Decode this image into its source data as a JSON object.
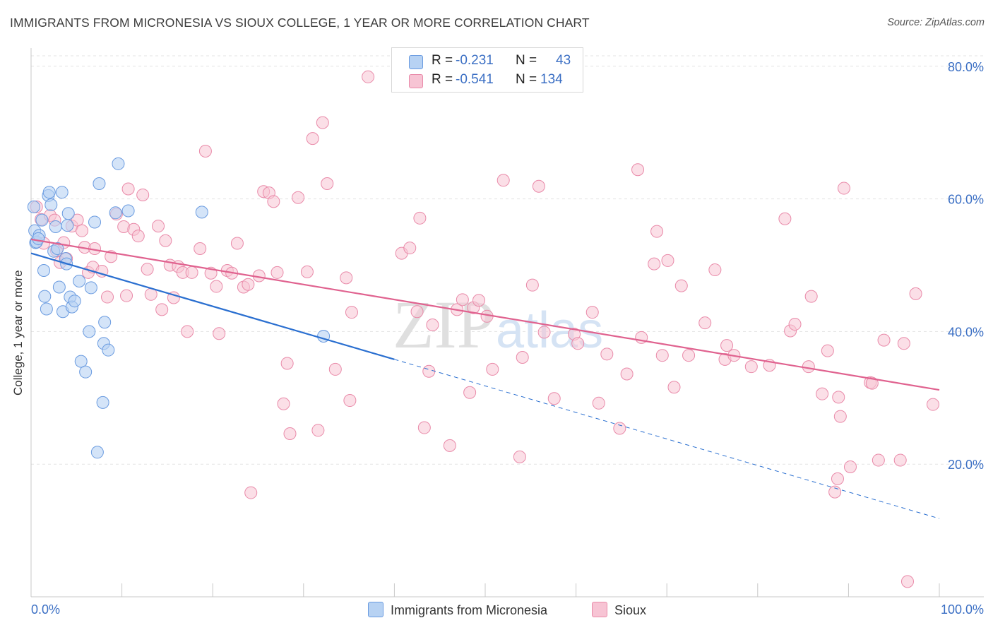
{
  "title": "IMMIGRANTS FROM MICRONESIA VS SIOUX COLLEGE, 1 YEAR OR MORE CORRELATION CHART",
  "source": "Source: ZipAtlas.com",
  "watermark": {
    "zip": "ZIP",
    "atlas": "atlas"
  },
  "colors": {
    "micronesia_fill": "#b7d2f3",
    "micronesia_stroke": "#6a9be0",
    "micronesia_line": "#2a6fd0",
    "sioux_fill": "#f7c4d4",
    "sioux_stroke": "#e98aa9",
    "sioux_line": "#e0628f",
    "value_blue": "#3b6fc4",
    "grid": "#e3e3e3"
  },
  "stats": {
    "micronesia": {
      "r_label": "R =",
      "r": "-0.231",
      "n_label": "N =",
      "n": "43"
    },
    "sioux": {
      "r_label": "R =",
      "r": "-0.541",
      "n_label": "N =",
      "n": "134"
    }
  },
  "legend": {
    "micronesia": "Immigrants from Micronesia",
    "sioux": "Sioux"
  },
  "chart_data": {
    "type": "scatter",
    "title": "IMMIGRANTS FROM MICRONESIA VS SIOUX COLLEGE, 1 YEAR OR MORE CORRELATION CHART",
    "xlabel": "",
    "ylabel": "College, 1 year or more",
    "xlim": [
      0,
      100
    ],
    "ylim": [
      0,
      82
    ],
    "x_tick_labels": [
      "0.0%",
      "100.0%"
    ],
    "y_ticks": [
      20,
      40,
      60,
      80
    ],
    "y_tick_labels": [
      "20.0%",
      "40.0%",
      "60.0%",
      "80.0%"
    ],
    "grid": true,
    "series": [
      {
        "name": "Immigrants from Micronesia",
        "r": -0.231,
        "n": 43,
        "trend": {
          "x0": 0,
          "y0": 51.8,
          "x1": 40,
          "y1": 35.8,
          "dashed_to_x": 100,
          "dashed_to_y": 11.8
        },
        "points": [
          [
            0.3,
            58.8
          ],
          [
            0.4,
            55.2
          ],
          [
            0.5,
            53.4
          ],
          [
            0.6,
            53.5
          ],
          [
            0.9,
            54.5
          ],
          [
            1.2,
            56.8
          ],
          [
            1.4,
            49.2
          ],
          [
            1.5,
            45.3
          ],
          [
            1.7,
            43.4
          ],
          [
            1.9,
            60.5
          ],
          [
            2.0,
            61.0
          ],
          [
            2.2,
            59.1
          ],
          [
            2.5,
            52.1
          ],
          [
            2.7,
            55.8
          ],
          [
            2.9,
            52.5
          ],
          [
            3.1,
            46.7
          ],
          [
            3.4,
            61.0
          ],
          [
            3.5,
            43.0
          ],
          [
            3.8,
            51.0
          ],
          [
            3.9,
            50.2
          ],
          [
            4.0,
            56.0
          ],
          [
            4.1,
            57.8
          ],
          [
            4.3,
            45.2
          ],
          [
            4.5,
            43.7
          ],
          [
            4.8,
            44.6
          ],
          [
            5.3,
            47.6
          ],
          [
            5.5,
            35.5
          ],
          [
            6.0,
            33.9
          ],
          [
            6.4,
            40.0
          ],
          [
            6.6,
            46.6
          ],
          [
            7.0,
            56.5
          ],
          [
            7.3,
            21.8
          ],
          [
            7.5,
            62.3
          ],
          [
            7.9,
            29.3
          ],
          [
            8.0,
            38.2
          ],
          [
            8.1,
            41.4
          ],
          [
            8.5,
            37.2
          ],
          [
            9.3,
            57.9
          ],
          [
            9.6,
            65.3
          ],
          [
            10.7,
            58.2
          ],
          [
            18.8,
            58.0
          ],
          [
            32.2,
            39.3
          ],
          [
            0.8,
            54.0
          ]
        ]
      },
      {
        "name": "Sioux",
        "r": -0.541,
        "n": 134,
        "trend": {
          "x0": 0,
          "y0": 53.9,
          "x1": 100,
          "y1": 31.2
        },
        "points": [
          [
            0.6,
            58.8
          ],
          [
            1.1,
            56.9
          ],
          [
            1.4,
            53.3
          ],
          [
            2.1,
            57.5
          ],
          [
            2.6,
            56.8
          ],
          [
            2.8,
            52.2
          ],
          [
            3.2,
            50.4
          ],
          [
            3.6,
            53.4
          ],
          [
            3.9,
            51.0
          ],
          [
            4.5,
            55.9
          ],
          [
            5.1,
            56.8
          ],
          [
            5.6,
            55.2
          ],
          [
            5.9,
            52.7
          ],
          [
            6.3,
            48.9
          ],
          [
            6.8,
            49.7
          ],
          [
            7.0,
            52.5
          ],
          [
            7.8,
            49.1
          ],
          [
            8.4,
            45.2
          ],
          [
            8.8,
            51.3
          ],
          [
            9.4,
            57.7
          ],
          [
            10.2,
            55.8
          ],
          [
            10.5,
            45.4
          ],
          [
            10.7,
            61.5
          ],
          [
            11.3,
            55.4
          ],
          [
            11.8,
            54.4
          ],
          [
            12.3,
            60.6
          ],
          [
            12.8,
            49.4
          ],
          [
            13.2,
            45.6
          ],
          [
            14.0,
            55.9
          ],
          [
            14.4,
            43.3
          ],
          [
            14.8,
            53.7
          ],
          [
            15.3,
            50.0
          ],
          [
            15.7,
            45.1
          ],
          [
            16.2,
            49.8
          ],
          [
            16.7,
            48.9
          ],
          [
            17.2,
            40.0
          ],
          [
            17.7,
            48.9
          ],
          [
            18.6,
            52.5
          ],
          [
            19.2,
            67.2
          ],
          [
            19.8,
            48.8
          ],
          [
            20.4,
            46.8
          ],
          [
            20.7,
            39.7
          ],
          [
            21.6,
            49.2
          ],
          [
            22.1,
            48.8
          ],
          [
            22.7,
            53.3
          ],
          [
            23.4,
            46.7
          ],
          [
            23.9,
            47.1
          ],
          [
            24.2,
            15.7
          ],
          [
            25.1,
            48.4
          ],
          [
            25.6,
            61.1
          ],
          [
            26.2,
            60.9
          ],
          [
            26.7,
            59.6
          ],
          [
            27.1,
            48.9
          ],
          [
            27.8,
            29.1
          ],
          [
            28.2,
            35.2
          ],
          [
            28.5,
            24.6
          ],
          [
            29.4,
            60.2
          ],
          [
            30.4,
            49.0
          ],
          [
            31.0,
            69.1
          ],
          [
            31.6,
            25.1
          ],
          [
            32.1,
            71.5
          ],
          [
            32.6,
            62.3
          ],
          [
            33.5,
            34.3
          ],
          [
            34.7,
            48.1
          ],
          [
            35.1,
            29.6
          ],
          [
            35.3,
            42.9
          ],
          [
            37.1,
            78.4
          ],
          [
            40.8,
            51.8
          ],
          [
            41.7,
            52.6
          ],
          [
            42.5,
            43.0
          ],
          [
            42.8,
            57.1
          ],
          [
            43.3,
            25.5
          ],
          [
            43.8,
            34.0
          ],
          [
            44.2,
            41.0
          ],
          [
            46.1,
            22.8
          ],
          [
            46.9,
            43.3
          ],
          [
            47.5,
            44.8
          ],
          [
            48.3,
            30.8
          ],
          [
            48.7,
            43.6
          ],
          [
            49.3,
            44.7
          ],
          [
            50.2,
            42.3
          ],
          [
            50.8,
            34.3
          ],
          [
            52.0,
            62.8
          ],
          [
            53.8,
            21.1
          ],
          [
            54.1,
            36.1
          ],
          [
            55.2,
            47.0
          ],
          [
            55.9,
            61.9
          ],
          [
            56.5,
            39.9
          ],
          [
            57.6,
            29.9
          ],
          [
            59.8,
            39.6
          ],
          [
            60.2,
            38.2
          ],
          [
            61.8,
            42.9
          ],
          [
            62.5,
            29.2
          ],
          [
            63.4,
            36.6
          ],
          [
            64.8,
            25.4
          ],
          [
            65.6,
            33.6
          ],
          [
            66.8,
            64.4
          ],
          [
            67.2,
            39.1
          ],
          [
            68.6,
            50.2
          ],
          [
            68.9,
            55.1
          ],
          [
            69.5,
            36.4
          ],
          [
            70.1,
            50.7
          ],
          [
            70.8,
            31.6
          ],
          [
            71.6,
            46.9
          ],
          [
            72.4,
            36.4
          ],
          [
            74.2,
            41.3
          ],
          [
            75.3,
            49.3
          ],
          [
            76.4,
            35.8
          ],
          [
            76.6,
            37.9
          ],
          [
            77.4,
            36.4
          ],
          [
            79.3,
            34.7
          ],
          [
            81.3,
            34.9
          ],
          [
            83.0,
            57.0
          ],
          [
            83.6,
            40.1
          ],
          [
            84.1,
            41.1
          ],
          [
            85.6,
            34.7
          ],
          [
            85.9,
            45.3
          ],
          [
            87.1,
            30.6
          ],
          [
            87.7,
            37.1
          ],
          [
            88.9,
            30.1
          ],
          [
            88.5,
            15.8
          ],
          [
            88.8,
            17.8
          ],
          [
            89.1,
            27.2
          ],
          [
            89.5,
            61.6
          ],
          [
            90.2,
            19.6
          ],
          [
            92.4,
            32.3
          ],
          [
            92.6,
            32.2
          ],
          [
            93.3,
            20.6
          ],
          [
            93.9,
            38.7
          ],
          [
            95.7,
            20.6
          ],
          [
            96.1,
            38.2
          ],
          [
            96.5,
            2.3
          ],
          [
            97.4,
            45.7
          ],
          [
            99.3,
            29.0
          ]
        ]
      }
    ]
  }
}
